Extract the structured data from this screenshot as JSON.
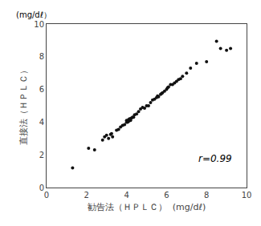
{
  "chart_data": {
    "type": "scatter",
    "xlabel": "勧告法（ＨＰＬＣ）  (mg/dℓ)",
    "ylabel": "直接法（ＨＰＬＣ）",
    "annotations": [
      {
        "text": "(mg/dℓ）"
      },
      {
        "text": "r=0.99",
        "x": 7.5,
        "y": 1.3
      }
    ],
    "x": [
      1.3,
      2.1,
      2.4,
      2.8,
      2.9,
      3.0,
      3.1,
      3.2,
      3.25,
      3.3,
      3.5,
      3.6,
      3.7,
      3.8,
      3.9,
      4.0,
      4.0,
      4.05,
      4.1,
      4.1,
      4.15,
      4.2,
      4.2,
      4.25,
      4.3,
      4.35,
      4.4,
      4.5,
      4.6,
      4.7,
      4.8,
      4.9,
      5.0,
      5.1,
      5.2,
      5.3,
      5.4,
      5.5,
      5.55,
      5.6,
      5.7,
      5.75,
      5.8,
      5.9,
      6.0,
      6.05,
      6.1,
      6.2,
      6.3,
      6.4,
      6.5,
      6.6,
      6.7,
      6.8,
      7.0,
      7.2,
      7.5,
      8.0,
      8.5,
      8.7,
      9.0,
      9.2
    ],
    "values": [
      1.2,
      2.4,
      2.3,
      2.9,
      3.1,
      3.2,
      3.0,
      3.25,
      3.3,
      3.1,
      3.5,
      3.55,
      3.7,
      3.8,
      3.85,
      4.0,
      4.1,
      4.0,
      4.05,
      4.15,
      4.2,
      4.1,
      4.2,
      4.25,
      4.3,
      4.3,
      4.45,
      4.5,
      4.65,
      4.8,
      4.9,
      4.85,
      5.0,
      5.0,
      5.2,
      5.35,
      5.4,
      5.5,
      5.6,
      5.55,
      5.7,
      5.75,
      5.8,
      5.9,
      6.0,
      6.1,
      6.15,
      6.3,
      6.3,
      6.4,
      6.5,
      6.6,
      6.65,
      6.8,
      7.0,
      7.3,
      7.6,
      7.7,
      8.95,
      8.5,
      8.4,
      8.5
    ],
    "color": "#111111",
    "xlim": [
      0,
      10
    ],
    "ylim": [
      0,
      10
    ],
    "xticks": [
      0,
      2,
      4,
      6,
      8,
      10
    ],
    "yticks": [
      0,
      2,
      4,
      6,
      8,
      10
    ],
    "grid": false
  }
}
